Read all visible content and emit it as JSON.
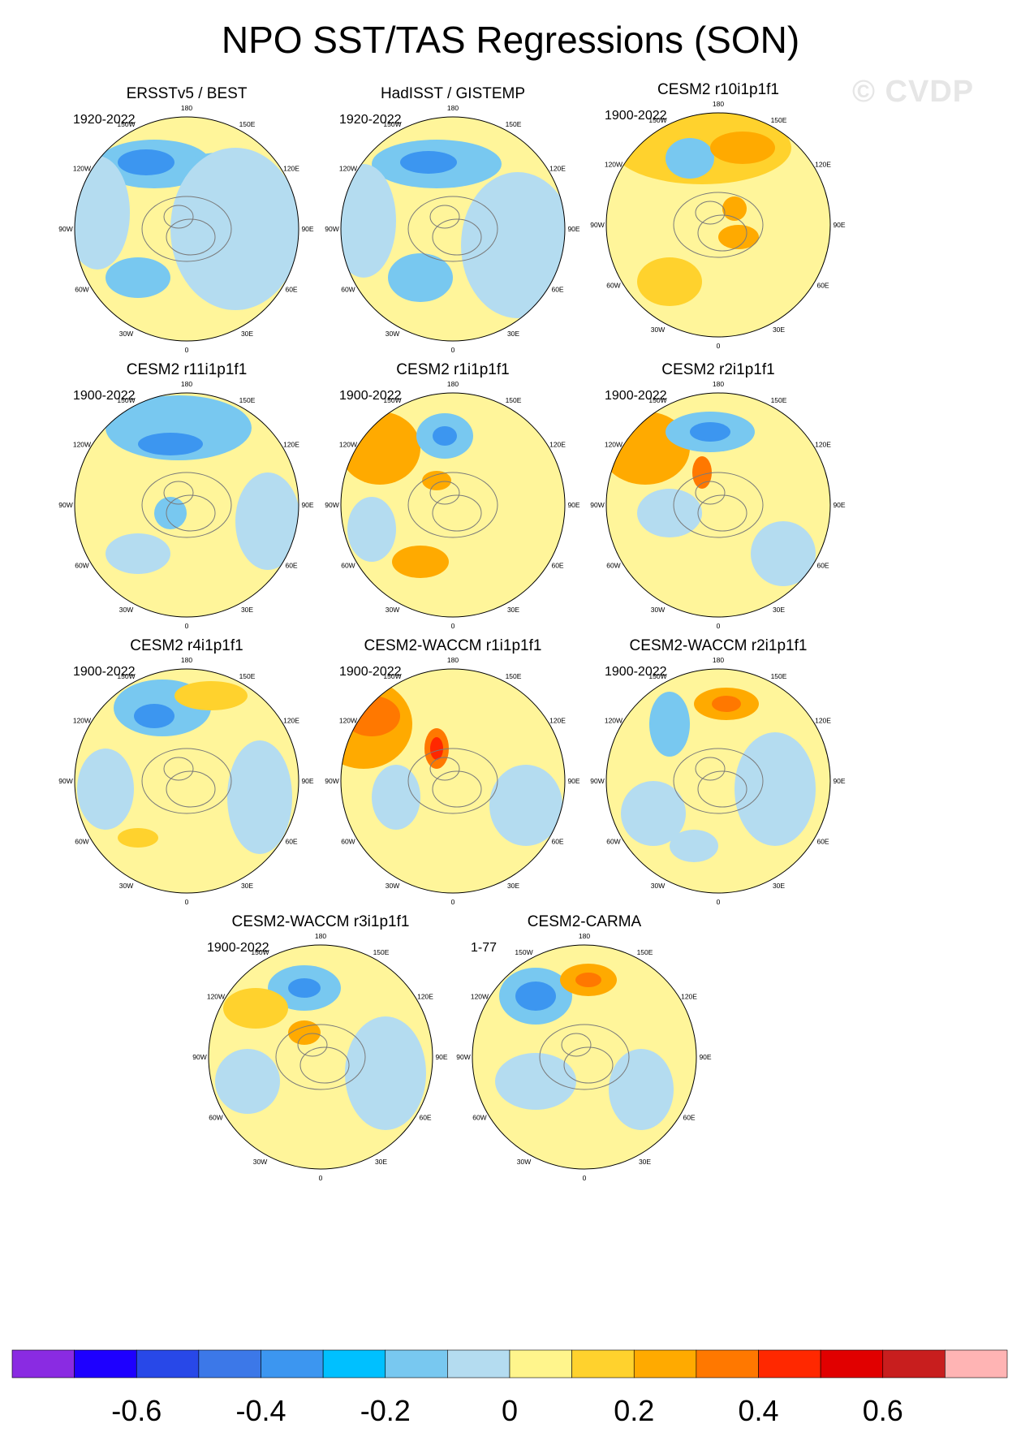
{
  "title": "NPO SST/TAS Regressions (SON)",
  "watermark": "© CVDP",
  "panels": [
    {
      "title": "ERSSTv5 / BEST",
      "period": "1920-2022"
    },
    {
      "title": "HadISST / GISTEMP",
      "period": "1920-2022"
    },
    {
      "title": "CESM2 r10i1p1f1",
      "period": "1900-2022"
    },
    {
      "title": "CESM2 r11i1p1f1",
      "period": "1900-2022"
    },
    {
      "title": "CESM2 r1i1p1f1",
      "period": "1900-2022"
    },
    {
      "title": "CESM2 r2i1p1f1",
      "period": "1900-2022"
    },
    {
      "title": "CESM2 r4i1p1f1",
      "period": "1900-2022"
    },
    {
      "title": "CESM2-WACCM r1i1p1f1",
      "period": "1900-2022"
    },
    {
      "title": "CESM2-WACCM r2i1p1f1",
      "period": "1900-2022"
    },
    {
      "title": "CESM2-WACCM r3i1p1f1",
      "period": "1900-2022"
    },
    {
      "title": "CESM2-CARMA",
      "period": "1-77"
    }
  ],
  "longitude_labels": [
    "180",
    "150E",
    "120E",
    "90E",
    "60E",
    "30E",
    "0",
    "30W",
    "60W",
    "90W",
    "120W",
    "150W"
  ],
  "colorbar": {
    "colors": [
      "#8a2be2",
      "#1e00ff",
      "#2848e8",
      "#3c78e8",
      "#3c96f0",
      "#00c0ff",
      "#78c8f0",
      "#b4dcf0",
      "#fff58c",
      "#ffd22d",
      "#ffaa00",
      "#ff7800",
      "#ff2800",
      "#e10000",
      "#c81e1e",
      "#ffb4b4"
    ],
    "labels": [
      "-0.6",
      "-0.4",
      "-0.2",
      "0",
      "0.2",
      "0.4",
      "0.6"
    ]
  },
  "fill_colors": {
    "land_ocean_neutral": "#fff59a",
    "weak_negative": "#b4dcf0",
    "moderate_negative": "#78c8f0",
    "strong_negative": "#3c96f0",
    "very_strong_negative": "#2848e8",
    "weak_positive": "#ffd22d",
    "moderate_positive": "#ffaa00",
    "strong_positive": "#ff7800",
    "very_strong_positive": "#ff2800"
  }
}
